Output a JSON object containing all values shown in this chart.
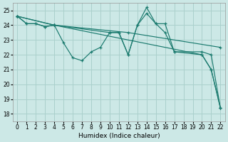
{
  "xlabel": "Humidex (Indice chaleur)",
  "bg_color": "#cce8e6",
  "grid_color": "#aad0cc",
  "line_color": "#1a7a6e",
  "xlim": [
    -0.5,
    22.5
  ],
  "ylim": [
    17.5,
    25.5
  ],
  "xticks": [
    0,
    1,
    2,
    3,
    4,
    5,
    6,
    7,
    8,
    9,
    10,
    11,
    12,
    13,
    14,
    15,
    16,
    17,
    18,
    19,
    20,
    21,
    22
  ],
  "yticks": [
    18,
    19,
    20,
    21,
    22,
    23,
    24,
    25
  ],
  "series": [
    {
      "x": [
        0,
        1,
        2,
        3,
        4,
        5,
        6,
        7,
        8,
        9,
        10,
        11,
        12,
        13,
        14,
        15,
        16,
        17,
        20,
        21,
        22
      ],
      "y": [
        24.6,
        24.1,
        24.1,
        23.9,
        24.0,
        22.8,
        21.8,
        21.6,
        22.2,
        22.5,
        23.5,
        23.5,
        22.0,
        24.0,
        25.2,
        24.1,
        24.1,
        22.2,
        22.0,
        21.0,
        18.4
      ]
    },
    {
      "x": [
        0,
        1,
        2,
        3,
        4,
        10,
        11,
        12,
        13,
        14,
        15,
        16,
        17,
        20,
        21,
        22
      ],
      "y": [
        24.6,
        24.1,
        24.1,
        23.9,
        24.0,
        23.5,
        23.5,
        22.0,
        24.0,
        24.8,
        24.1,
        23.5,
        22.2,
        22.2,
        22.0,
        18.4
      ]
    },
    {
      "x": [
        0,
        4,
        12,
        22
      ],
      "y": [
        24.6,
        24.0,
        23.5,
        22.5
      ]
    },
    {
      "x": [
        0,
        4,
        20,
        21,
        22
      ],
      "y": [
        24.6,
        24.0,
        22.0,
        21.0,
        18.4
      ]
    }
  ]
}
